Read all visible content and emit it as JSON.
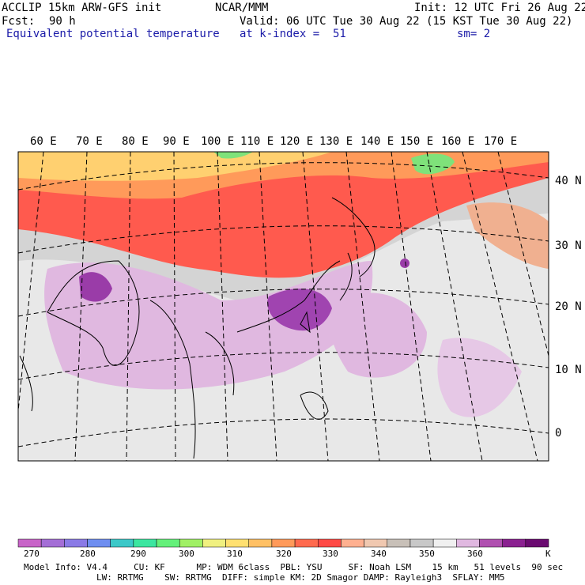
{
  "header": {
    "model": "ACCLIP 15km ARW-GFS init",
    "org": "NCAR/MMM",
    "init": "Init: 12 UTC Fri 26 Aug 22",
    "fcst_label": "Fcst:",
    "fcst_value": "90 h",
    "valid": "Valid: 06 UTC Tue 30 Aug 22 (15 KST Tue 30 Aug 22)",
    "field": "Equivalent potential temperature",
    "level": "at k-index =  51",
    "smooth": "sm= 2"
  },
  "map": {
    "lon_labels": [
      "60 E",
      "70 E",
      "80 E",
      "90 E",
      "100 E",
      "110 E",
      "120 E",
      "130 E",
      "140 E",
      "150 E",
      "160 E",
      "170 E"
    ],
    "lat_labels": [
      "40 N",
      "30 N",
      "20 N",
      "10 N",
      "0"
    ],
    "colors": {
      "high": "#ff5a4e",
      "warm": "#ff9a5a",
      "mid": "#ffd070",
      "green": "#7fe27a",
      "gray": "#c8c8c8",
      "white": "#f0f0f0",
      "lilac": "#e0b8e0",
      "purple": "#9a3ca8"
    }
  },
  "colorbar": {
    "colors": [
      "#c864c8",
      "#a46ed6",
      "#8a7ae6",
      "#6e8ef0",
      "#3cc8c8",
      "#3ce6a0",
      "#64f07a",
      "#a0f064",
      "#f0f080",
      "#ffe070",
      "#ffc064",
      "#ff9a5a",
      "#ff6a4e",
      "#ff4a46",
      "#ffb090",
      "#f0c8b0",
      "#c8c0b8",
      "#c8c8c8",
      "#f0f0f0",
      "#e0b8e0",
      "#b050b0",
      "#8a2090",
      "#6a0a70"
    ],
    "ticks": [
      "270",
      "280",
      "290",
      "300",
      "310",
      "320",
      "330",
      "340",
      "350",
      "360",
      "K"
    ]
  },
  "footer": {
    "line1": "Model Info: V4.4     CU: KF      MP: WDM 6class  PBL: YSU     SF: Noah LSM    15 km   51 levels  90 sec",
    "line2": "LW: RRTMG    SW: RRTMG  DIFF: simple KM: 2D Smagor DAMP: Rayleigh3  SFLAY: MM5"
  }
}
